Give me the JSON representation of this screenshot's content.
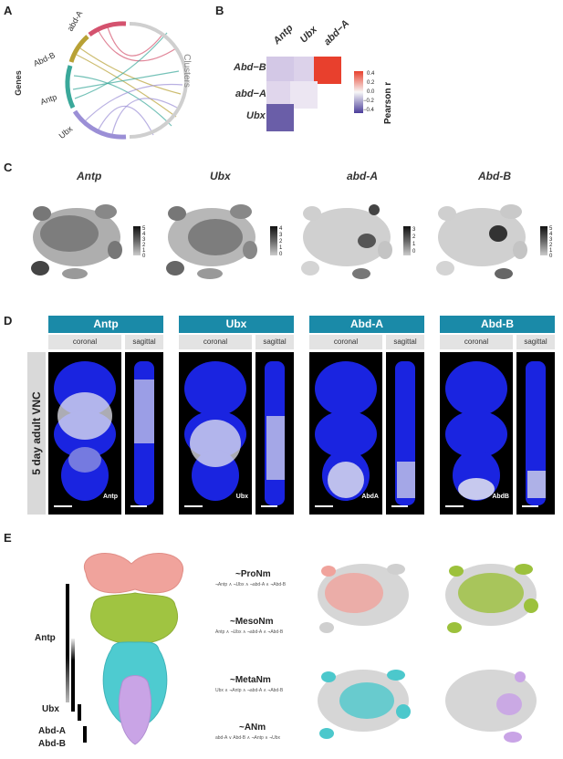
{
  "panels": {
    "a": "A",
    "b": "B",
    "c": "C",
    "d": "D",
    "e": "E"
  },
  "chord": {
    "genes_label": "Genes",
    "clusters_label": "Clusters",
    "genes": [
      "abd-A",
      "Abd-B",
      "Antp",
      "Ubx"
    ],
    "colors": [
      "#d4526e",
      "#b8a135",
      "#3aa89a",
      "#9b8fd6"
    ]
  },
  "heatmap": {
    "columns": [
      "Antp",
      "Ubx",
      "abd−A"
    ],
    "rows": [
      "Abd−B",
      "abd−A",
      "Ubx"
    ],
    "legend_title": "Pearson r",
    "legend_ticks": [
      "0.4",
      "0.2",
      "0.0",
      "−0.2",
      "−0.4"
    ]
  },
  "chart_data": {
    "type": "heatmap",
    "x_categories": [
      "Antp",
      "Ubx",
      "abd-A"
    ],
    "y_categories": [
      "Abd-B",
      "abd-A",
      "Ubx"
    ],
    "cells": [
      {
        "x": "Antp",
        "y": "Abd-B",
        "value": -0.12
      },
      {
        "x": "Ubx",
        "y": "Abd-B",
        "value": -0.1
      },
      {
        "x": "abd-A",
        "y": "Abd-B",
        "value": 0.42
      },
      {
        "x": "Antp",
        "y": "abd-A",
        "value": -0.08
      },
      {
        "x": "Ubx",
        "y": "abd-A",
        "value": -0.05
      },
      {
        "x": "Antp",
        "y": "Ubx",
        "value": -0.38
      }
    ],
    "colorbar_title": "Pearson r",
    "colorbar_range": [
      -0.4,
      0.4
    ]
  },
  "tsne": {
    "genes": [
      "Antp",
      "Ubx",
      "abd-A",
      "Abd-B"
    ],
    "legends": [
      [
        "5",
        "4",
        "3",
        "2",
        "1",
        "0"
      ],
      [
        "4",
        "3",
        "2",
        "1",
        "0"
      ],
      [
        "3",
        "2",
        "1",
        "0"
      ],
      [
        "5",
        "4",
        "3",
        "2",
        "1",
        "0"
      ]
    ]
  },
  "vnc": {
    "row_label": "5 day adult VNC",
    "groups": [
      {
        "title": "Antp",
        "coronal": "coronal",
        "sagittal": "sagittal",
        "tag": "Antp"
      },
      {
        "title": "Ubx",
        "coronal": "coronal",
        "sagittal": "sagittal",
        "tag": "Ubx"
      },
      {
        "title": "Abd-A",
        "coronal": "coronal",
        "sagittal": "sagittal",
        "tag": "AbdA"
      },
      {
        "title": "Abd-B",
        "coronal": "coronal",
        "sagittal": "sagittal",
        "tag": "AbdB"
      }
    ]
  },
  "model": {
    "bars": [
      "Antp",
      "Ubx",
      "Abd-A",
      "Abd-B"
    ],
    "segments": [
      {
        "title": "~ProNm",
        "rule": "¬Antp ∧ ¬Ubx ∧ ¬abd-A ∧ ¬Abd-B",
        "color": "#f2a49a"
      },
      {
        "title": "~MesoNm",
        "rule": "Antp ∧ ¬Ubx ∧ ¬abd-A ∧ ¬Abd-B",
        "color": "#9cc13c"
      },
      {
        "title": "~MetaNm",
        "rule": "Ubx ∧ ¬Antp ∧ ¬abd-A ∧ ¬Abd-B",
        "color": "#4cc8cc"
      },
      {
        "title": "~ANm",
        "rule": "abd-A ∨ Abd-B ∧ ¬Antp ∧ ¬Ubx",
        "color": "#c9a4e6"
      }
    ]
  }
}
